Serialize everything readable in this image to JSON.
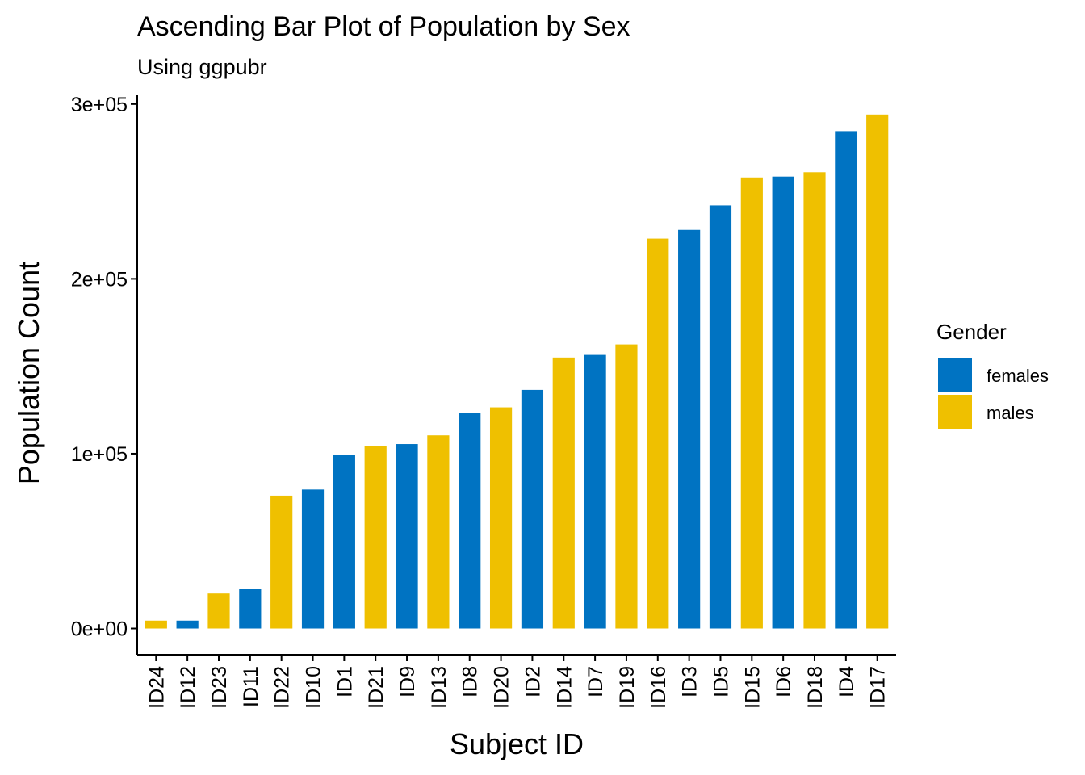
{
  "chart_data": {
    "type": "bar",
    "title": "Ascending Bar Plot of Population by Sex",
    "subtitle": "Using ggpubr",
    "xlabel": "Subject ID",
    "ylabel": "Population Count",
    "ylim": [
      -15000,
      305000
    ],
    "yticks": [
      0,
      100000,
      200000,
      300000
    ],
    "ytick_labels": [
      "0e+00",
      "1e+05",
      "2e+05",
      "3e+05"
    ],
    "grid": false,
    "legend": {
      "title": "Gender",
      "position": "right",
      "entries": [
        {
          "label": "females",
          "color": "#0073C2"
        },
        {
          "label": "males",
          "color": "#EFC000"
        }
      ]
    },
    "categories": [
      "ID24",
      "ID12",
      "ID23",
      "ID11",
      "ID22",
      "ID10",
      "ID1",
      "ID21",
      "ID9",
      "ID13",
      "ID8",
      "ID20",
      "ID2",
      "ID14",
      "ID7",
      "ID19",
      "ID16",
      "ID3",
      "ID5",
      "ID15",
      "ID6",
      "ID18",
      "ID4",
      "ID17"
    ],
    "values": [
      4500,
      4500,
      20000,
      22500,
      76000,
      79500,
      99500,
      104500,
      105500,
      110500,
      123500,
      126500,
      136500,
      155000,
      156500,
      162500,
      223000,
      228000,
      242000,
      258000,
      258500,
      261000,
      284500,
      294000
    ],
    "groups": [
      "males",
      "females",
      "males",
      "females",
      "males",
      "females",
      "females",
      "males",
      "females",
      "males",
      "females",
      "males",
      "females",
      "males",
      "females",
      "males",
      "males",
      "females",
      "females",
      "males",
      "females",
      "males",
      "females",
      "males"
    ]
  }
}
